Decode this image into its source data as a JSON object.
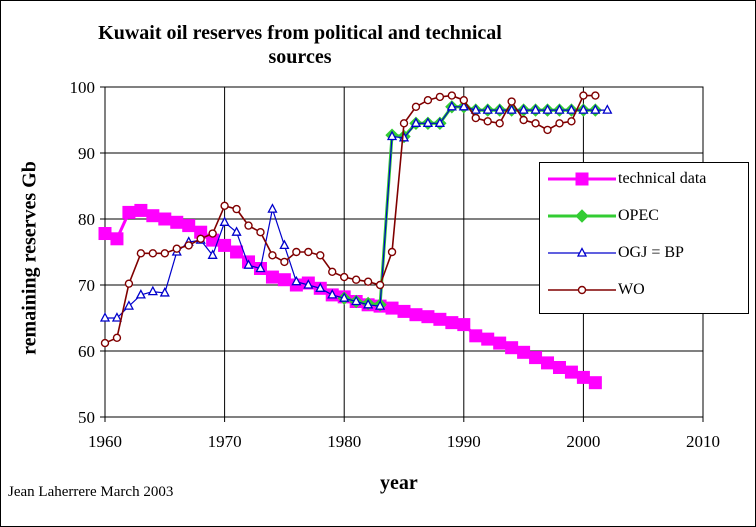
{
  "chart_data": {
    "type": "line",
    "title_line1": "Kuwait oil reserves from political and technical",
    "title_line2": "sources",
    "xlabel": "year",
    "ylabel": "remaining reserves Gb",
    "xlim": [
      1960,
      2010
    ],
    "ylim": [
      50,
      100
    ],
    "x_ticks": [
      "1960",
      "1970",
      "1980",
      "1990",
      "2000",
      "2010"
    ],
    "y_ticks": [
      "50",
      "60",
      "70",
      "80",
      "90",
      "100"
    ],
    "grid": true,
    "legend_position": "right",
    "credit": "Jean Laherrere March 2003",
    "series": [
      {
        "name": "technical data",
        "color": "#ff00ff",
        "marker": "square",
        "points": [
          [
            1960,
            77.8
          ],
          [
            1961,
            77
          ],
          [
            1962,
            81
          ],
          [
            1963,
            81.3
          ],
          [
            1964,
            80.5
          ],
          [
            1965,
            80
          ],
          [
            1966,
            79.5
          ],
          [
            1967,
            79
          ],
          [
            1968,
            78
          ],
          [
            1969,
            76.8
          ],
          [
            1970,
            76
          ],
          [
            1971,
            75
          ],
          [
            1972,
            73.5
          ],
          [
            1973,
            72.5
          ],
          [
            1974,
            71.2
          ],
          [
            1975,
            70.8
          ],
          [
            1976,
            70
          ],
          [
            1977,
            70.3
          ],
          [
            1978,
            69.5
          ],
          [
            1979,
            68.5
          ],
          [
            1980,
            68.2
          ],
          [
            1981,
            67.5
          ],
          [
            1982,
            67
          ],
          [
            1983,
            66.8
          ],
          [
            1984,
            66.5
          ],
          [
            1985,
            66
          ],
          [
            1986,
            65.5
          ],
          [
            1987,
            65.2
          ],
          [
            1988,
            64.8
          ],
          [
            1989,
            64.3
          ],
          [
            1990,
            64
          ],
          [
            1991,
            62.3
          ],
          [
            1992,
            61.8
          ],
          [
            1993,
            61.2
          ],
          [
            1994,
            60.5
          ],
          [
            1995,
            59.8
          ],
          [
            1996,
            59
          ],
          [
            1997,
            58.2
          ],
          [
            1998,
            57.5
          ],
          [
            1999,
            56.8
          ],
          [
            2000,
            56
          ],
          [
            2001,
            55.2
          ]
        ]
      },
      {
        "name": "OPEC",
        "color": "#33cc33",
        "marker": "diamond",
        "points": [
          [
            1980,
            68
          ],
          [
            1981,
            67.5
          ],
          [
            1982,
            67.2
          ],
          [
            1983,
            67
          ],
          [
            1984,
            92.7
          ],
          [
            1985,
            92.5
          ],
          [
            1986,
            94.5
          ],
          [
            1987,
            94.5
          ],
          [
            1988,
            94.5
          ],
          [
            1989,
            97
          ],
          [
            1990,
            97
          ],
          [
            1991,
            96.5
          ],
          [
            1992,
            96.5
          ],
          [
            1993,
            96.5
          ],
          [
            1994,
            96.5
          ],
          [
            1995,
            96.5
          ],
          [
            1996,
            96.5
          ],
          [
            1997,
            96.5
          ],
          [
            1998,
            96.5
          ],
          [
            1999,
            96.5
          ],
          [
            2000,
            96.5
          ],
          [
            2001,
            96.5
          ]
        ]
      },
      {
        "name": "OGJ = BP",
        "color": "#0000cc",
        "marker": "triangle",
        "points": [
          [
            1960,
            65
          ],
          [
            1961,
            65
          ],
          [
            1962,
            66.8
          ],
          [
            1963,
            68.5
          ],
          [
            1964,
            69
          ],
          [
            1965,
            68.8
          ],
          [
            1966,
            75
          ],
          [
            1967,
            76.5
          ],
          [
            1968,
            76.8
          ],
          [
            1969,
            74.5
          ],
          [
            1970,
            79.5
          ],
          [
            1971,
            78
          ],
          [
            1972,
            73
          ],
          [
            1973,
            72.5
          ],
          [
            1974,
            81.5
          ],
          [
            1975,
            76
          ],
          [
            1976,
            70.5
          ],
          [
            1977,
            70
          ],
          [
            1978,
            69.5
          ],
          [
            1979,
            68.5
          ],
          [
            1980,
            68
          ],
          [
            1981,
            67.5
          ],
          [
            1982,
            67
          ],
          [
            1983,
            66.8
          ],
          [
            1984,
            92.5
          ],
          [
            1985,
            92.3
          ],
          [
            1986,
            94.5
          ],
          [
            1987,
            94.5
          ],
          [
            1988,
            94.5
          ],
          [
            1989,
            97
          ],
          [
            1990,
            97
          ],
          [
            1991,
            96.5
          ],
          [
            1992,
            96.5
          ],
          [
            1993,
            96.5
          ],
          [
            1994,
            96.5
          ],
          [
            1995,
            96.5
          ],
          [
            1996,
            96.5
          ],
          [
            1997,
            96.5
          ],
          [
            1998,
            96.5
          ],
          [
            1999,
            96.5
          ],
          [
            2000,
            96.5
          ],
          [
            2001,
            96.5
          ],
          [
            2002,
            96.5
          ]
        ]
      },
      {
        "name": "WO",
        "color": "#800000",
        "marker": "circle",
        "points": [
          [
            1960,
            61.2
          ],
          [
            1961,
            62
          ],
          [
            1962,
            70.2
          ],
          [
            1963,
            74.8
          ],
          [
            1964,
            74.8
          ],
          [
            1965,
            74.8
          ],
          [
            1966,
            75.5
          ],
          [
            1967,
            76
          ],
          [
            1968,
            77
          ],
          [
            1969,
            77.8
          ],
          [
            1970,
            82
          ],
          [
            1971,
            81.5
          ],
          [
            1972,
            79
          ],
          [
            1973,
            78
          ],
          [
            1974,
            74.5
          ],
          [
            1975,
            73.5
          ],
          [
            1976,
            75
          ],
          [
            1977,
            75
          ],
          [
            1978,
            74.5
          ],
          [
            1979,
            72
          ],
          [
            1980,
            71.2
          ],
          [
            1981,
            70.8
          ],
          [
            1982,
            70.5
          ],
          [
            1983,
            70
          ],
          [
            1984,
            75
          ],
          [
            1985,
            94.5
          ],
          [
            1986,
            97
          ],
          [
            1987,
            98
          ],
          [
            1988,
            98.5
          ],
          [
            1989,
            98.7
          ],
          [
            1990,
            98
          ],
          [
            1991,
            95.3
          ],
          [
            1992,
            94.8
          ],
          [
            1993,
            94.5
          ],
          [
            1994,
            97.8
          ],
          [
            1995,
            95
          ],
          [
            1996,
            94.5
          ],
          [
            1997,
            93.5
          ],
          [
            1998,
            94.5
          ],
          [
            1999,
            94.8
          ],
          [
            2000,
            98.7
          ],
          [
            2001,
            98.7
          ]
        ]
      }
    ]
  }
}
